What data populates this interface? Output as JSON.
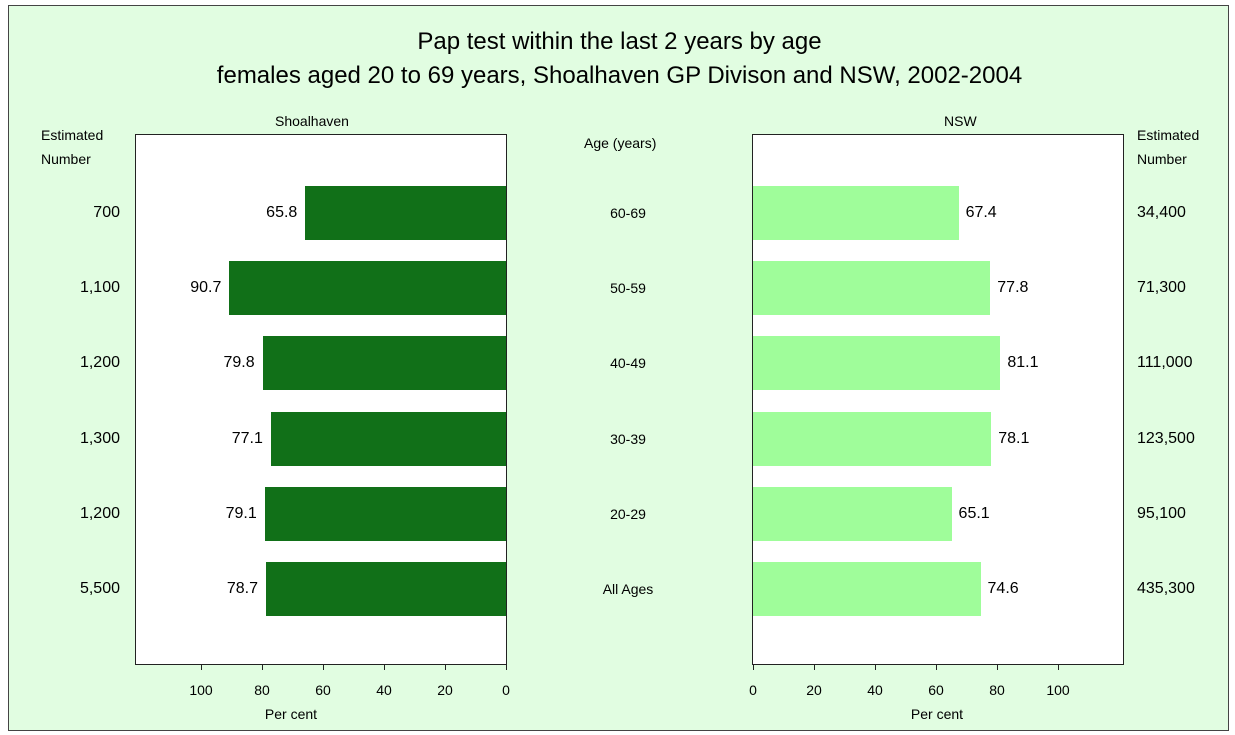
{
  "chart_data": {
    "type": "bar",
    "title": "Pap test within the last 2 years by age",
    "subtitle": "females aged 20 to 69 years, Shoalhaven GP Divison and NSW, 2002-2004",
    "category_header": "Age (years)",
    "categories": [
      "60-69",
      "50-59",
      "40-49",
      "30-39",
      "20-29",
      "All Ages"
    ],
    "panels": [
      {
        "name": "Shoalhaven",
        "values": [
          65.8,
          90.7,
          79.8,
          77.1,
          79.1,
          78.7
        ],
        "estimated_number": [
          "700",
          "1,100",
          "1,200",
          "1,300",
          "1,200",
          "5,500"
        ],
        "color": "#117018",
        "direction": "right-to-left"
      },
      {
        "name": "NSW",
        "values": [
          67.4,
          77.8,
          81.1,
          78.1,
          65.1,
          74.6
        ],
        "estimated_number": [
          "34,400",
          "71,300",
          "111,000",
          "123,500",
          "95,100",
          "435,300"
        ],
        "color": "#9ffd9a",
        "direction": "left-to-right"
      }
    ],
    "xlabel": "Per cent",
    "xlim": [
      0,
      120
    ],
    "xticks": [
      0,
      20,
      40,
      60,
      80,
      100
    ],
    "estimated_number_header": "Estimated\nNumber"
  }
}
